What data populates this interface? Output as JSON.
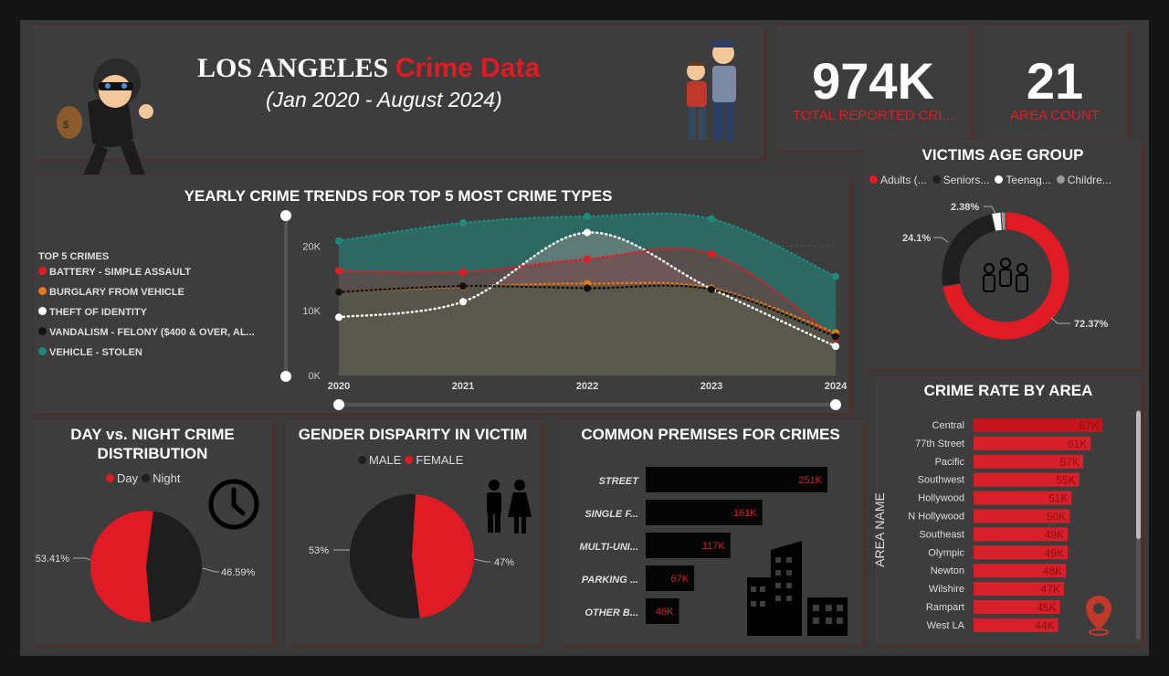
{
  "header": {
    "title_part1": "LOS ANGELES",
    "title_part2": "Crime Data",
    "subtitle": "(Jan 2020 - August 2024)"
  },
  "kpis": [
    {
      "value": "974K",
      "label": "TOTAL REPORTED CRI..."
    },
    {
      "value": "21",
      "label": "AREA COUNT"
    }
  ],
  "colors": {
    "red": "#e01b24",
    "orange": "#e07a1b",
    "white": "#ffffff",
    "black": "#111111",
    "teal": "#1f8a7a"
  },
  "chart_data": [
    {
      "type": "area",
      "title": "YEARLY CRIME TRENDS FOR TOP 5 MOST CRIME TYPES",
      "legend_title": "TOP 5 CRIMES",
      "x": [
        "2020",
        "2021",
        "2022",
        "2023",
        "2024"
      ],
      "ylim": [
        0,
        25000
      ],
      "yticks": [
        "0K",
        "10K",
        "20K"
      ],
      "legend_position": "left",
      "series": [
        {
          "name": "BATTERY - SIMPLE ASSAULT",
          "color": "#e01b24",
          "values": [
            16200,
            16000,
            18000,
            18800,
            5800
          ]
        },
        {
          "name": "BURGLARY FROM VEHICLE",
          "color": "#e07a1b",
          "values": [
            12900,
            13700,
            14200,
            13500,
            6600
          ]
        },
        {
          "name": "THEFT OF IDENTITY",
          "color": "#ffffff",
          "values": [
            9000,
            11400,
            22100,
            13400,
            4500
          ]
        },
        {
          "name": "VANDALISM - FELONY ($400 & OVER, AL...",
          "color": "#111111",
          "values": [
            12900,
            13800,
            13500,
            13300,
            6000
          ]
        },
        {
          "name": "VEHICLE - STOLEN",
          "color": "#1f8a7a",
          "values": [
            20800,
            23600,
            24600,
            24200,
            15300
          ]
        }
      ]
    },
    {
      "type": "pie",
      "title": "VICTIMS AGE GROUP",
      "variant": "donut",
      "legend_position": "top",
      "categories": [
        "Adults (...",
        "Seniors...",
        "Teenag...",
        "Childre..."
      ],
      "values": [
        72.37,
        24.1,
        2.38,
        1.15
      ],
      "labels": [
        "72.37%",
        "24.1%",
        "2.38%"
      ],
      "colors": [
        "#e01b24",
        "#1e1e1e",
        "#ffffff",
        "#9a9a9a"
      ]
    },
    {
      "type": "pie",
      "title": "DAY vs. NIGHT CRIME DISTRIBUTION",
      "legend_position": "top",
      "categories": [
        "Day",
        "Night"
      ],
      "values": [
        53.41,
        46.59
      ],
      "labels": [
        "53.41%",
        "46.59%"
      ],
      "colors": [
        "#e01b24",
        "#1e1e1e"
      ]
    },
    {
      "type": "pie",
      "title": "GENDER DISPARITY IN VICTIM",
      "legend_position": "top",
      "categories": [
        "MALE",
        "FEMALE"
      ],
      "values": [
        53,
        47
      ],
      "labels": [
        "53%",
        "47%"
      ],
      "colors": [
        "#1e1e1e",
        "#e01b24"
      ]
    },
    {
      "type": "bar",
      "title": "COMMON PREMISES FOR CRIMES",
      "orientation": "horizontal",
      "categories": [
        "STREET",
        "SINGLE F...",
        "MULTI-UNI...",
        "PARKING ...",
        "OTHER B..."
      ],
      "values": [
        251,
        161,
        117,
        67,
        46
      ],
      "labels": [
        "251K",
        "161K",
        "117K",
        "67K",
        "46K"
      ]
    },
    {
      "type": "bar",
      "title": "CRIME RATE BY AREA",
      "orientation": "horizontal",
      "ylabel": "AREA NAME",
      "categories": [
        "Central",
        "77th Street",
        "Pacific",
        "Southwest",
        "Hollywood",
        "N Hollywood",
        "Southeast",
        "Olympic",
        "Newton",
        "Wilshire",
        "Rampart",
        "West LA"
      ],
      "values": [
        67,
        61,
        57,
        55,
        51,
        50,
        49,
        49,
        48,
        47,
        45,
        44
      ],
      "labels": [
        "67K",
        "61K",
        "57K",
        "55K",
        "51K",
        "50K",
        "49K",
        "49K",
        "48K",
        "47K",
        "45K",
        "44K"
      ]
    }
  ]
}
